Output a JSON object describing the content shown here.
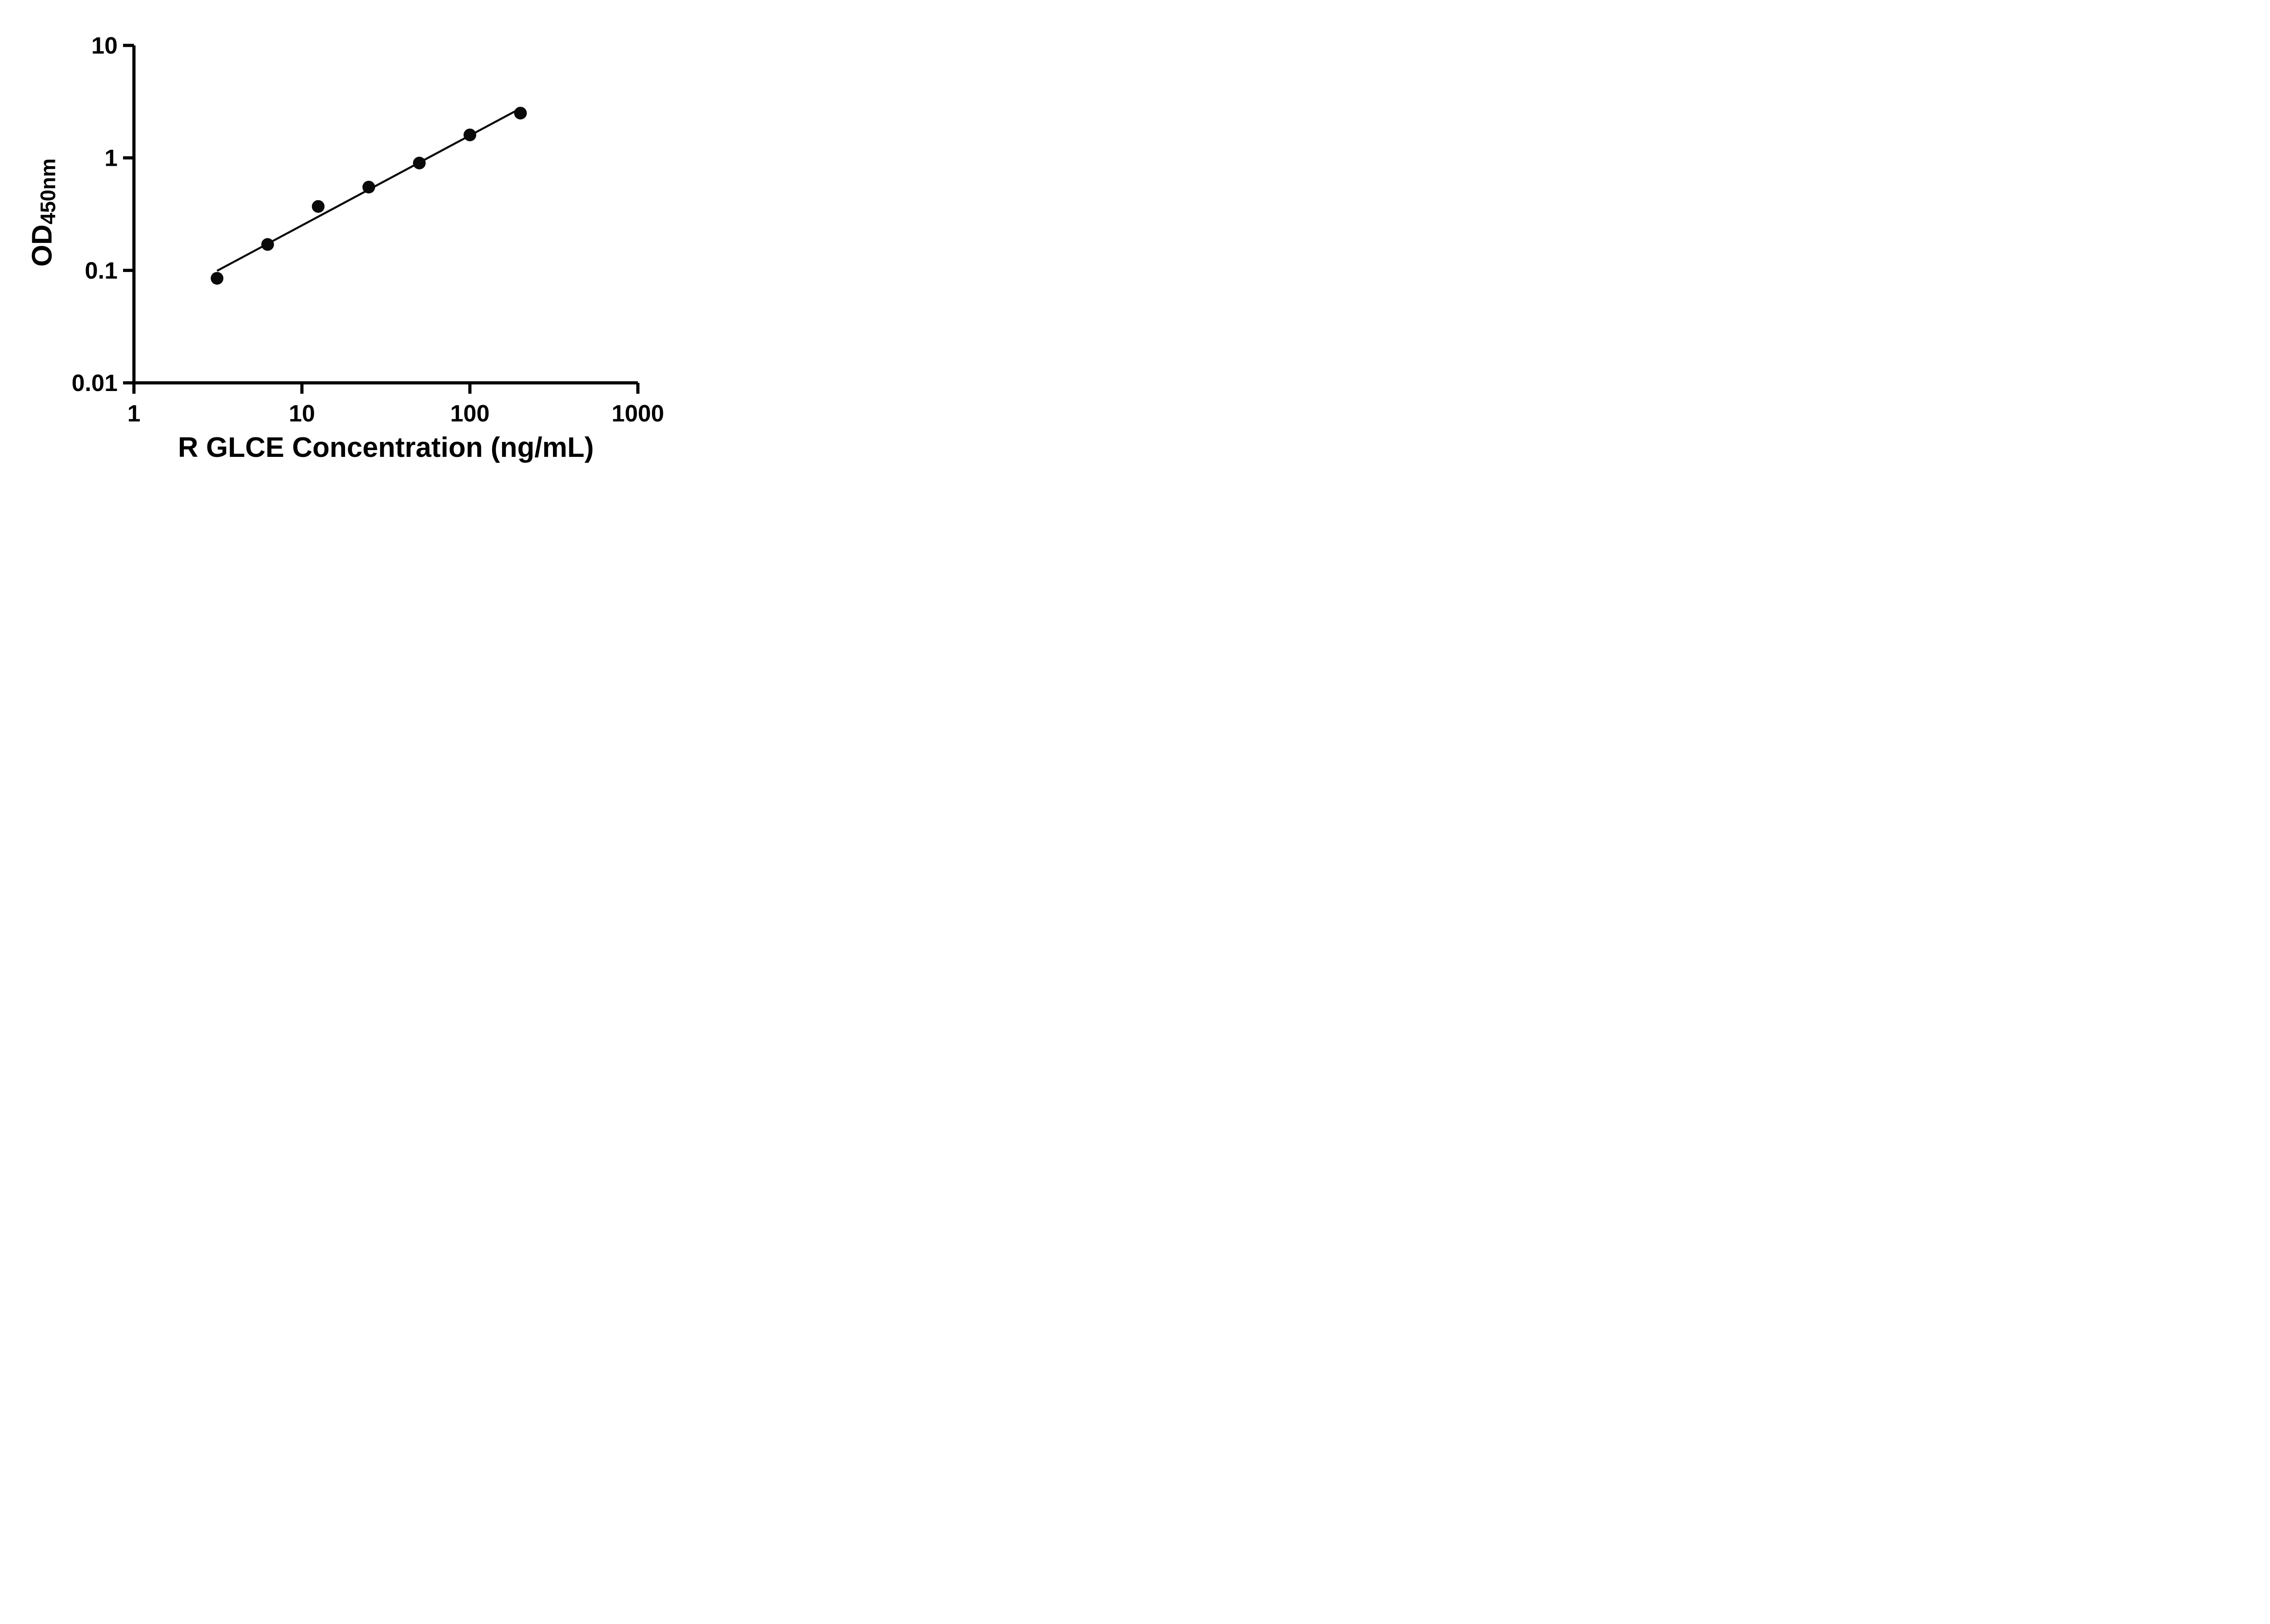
{
  "page": {
    "background": "#ffffff"
  },
  "chart_data": {
    "type": "scatter",
    "title": "",
    "xlabel": "R GLCE Concentration (ng/mL)",
    "ylabel_main": "OD",
    "ylabel_sub": "450nm",
    "x_scale": "log",
    "y_scale": "log",
    "xlim": [
      1,
      1000
    ],
    "ylim": [
      0.01,
      10
    ],
    "x_ticks": [
      1,
      10,
      100,
      1000
    ],
    "x_tick_labels": [
      "1",
      "10",
      "100",
      "1000"
    ],
    "y_ticks": [
      0.01,
      0.1,
      1,
      10
    ],
    "y_tick_labels": [
      "0.01",
      "0.1",
      "1",
      "10"
    ],
    "grid": "off",
    "legend": "none",
    "points": {
      "x": [
        3.125,
        6.25,
        12.5,
        25,
        50,
        100,
        200
      ],
      "y": [
        0.085,
        0.17,
        0.37,
        0.55,
        0.9,
        1.6,
        2.5
      ]
    },
    "fit": {
      "type": "power",
      "draw": true
    },
    "marker_color": "#0a0a0a",
    "line_color": "#0a0a0a",
    "axis_color": "#000000"
  }
}
